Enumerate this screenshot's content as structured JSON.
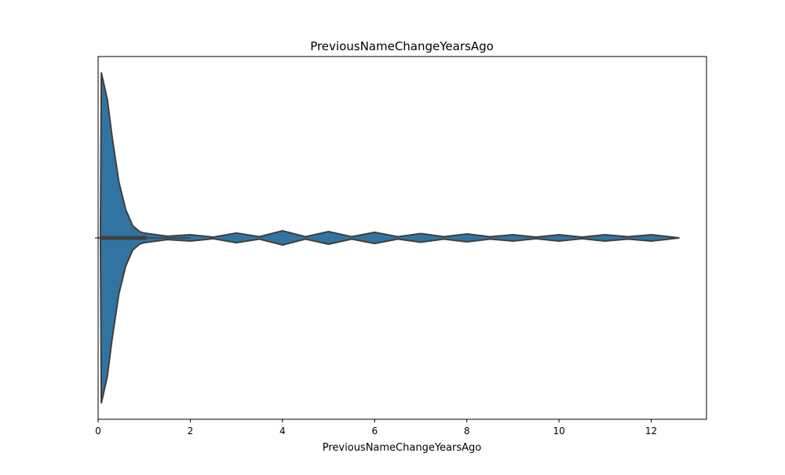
{
  "chart_data": {
    "type": "violin",
    "orientation": "horizontal",
    "title": "PreviousNameChangeYearsAgo",
    "xlabel": "PreviousNameChangeYearsAgo",
    "ylabel": "",
    "xlim": [
      0,
      13.2
    ],
    "x_ticks": [
      0,
      2,
      4,
      6,
      8,
      10,
      12
    ],
    "x_tick_labels": [
      "0",
      "2",
      "4",
      "6",
      "8",
      "10",
      "12"
    ],
    "grid": false,
    "legend": "none",
    "colors": {
      "violin_fill": "#3274a1",
      "outline": "#3f3f3f",
      "box": "#3f3f3f"
    },
    "density_curve": [
      {
        "x": 0.05,
        "d": 0.0
      },
      {
        "x": 0.07,
        "d": 1.0
      },
      {
        "x": 0.2,
        "d": 0.84
      },
      {
        "x": 0.3,
        "d": 0.62
      },
      {
        "x": 0.45,
        "d": 0.34
      },
      {
        "x": 0.6,
        "d": 0.17
      },
      {
        "x": 0.75,
        "d": 0.074
      },
      {
        "x": 0.9,
        "d": 0.038
      },
      {
        "x": 1.0,
        "d": 0.029
      },
      {
        "x": 1.5,
        "d": 0.01
      },
      {
        "x": 2.0,
        "d": 0.019
      },
      {
        "x": 2.5,
        "d": 0.005
      },
      {
        "x": 3.0,
        "d": 0.029
      },
      {
        "x": 3.5,
        "d": 0.007
      },
      {
        "x": 4.0,
        "d": 0.043
      },
      {
        "x": 4.5,
        "d": 0.007
      },
      {
        "x": 5.0,
        "d": 0.038
      },
      {
        "x": 5.5,
        "d": 0.007
      },
      {
        "x": 6.0,
        "d": 0.034
      },
      {
        "x": 6.5,
        "d": 0.007
      },
      {
        "x": 7.0,
        "d": 0.026
      },
      {
        "x": 7.5,
        "d": 0.007
      },
      {
        "x": 8.0,
        "d": 0.024
      },
      {
        "x": 8.5,
        "d": 0.007
      },
      {
        "x": 9.0,
        "d": 0.019
      },
      {
        "x": 9.5,
        "d": 0.005
      },
      {
        "x": 10.0,
        "d": 0.019
      },
      {
        "x": 10.5,
        "d": 0.005
      },
      {
        "x": 11.0,
        "d": 0.019
      },
      {
        "x": 11.5,
        "d": 0.007
      },
      {
        "x": 12.0,
        "d": 0.019
      },
      {
        "x": 12.3,
        "d": 0.01
      },
      {
        "x": 12.6,
        "d": 0.0
      }
    ],
    "box": {
      "q1": 0.05,
      "q3": 1.05,
      "whisker_low": 0.0,
      "whisker_high": 2.0
    }
  }
}
